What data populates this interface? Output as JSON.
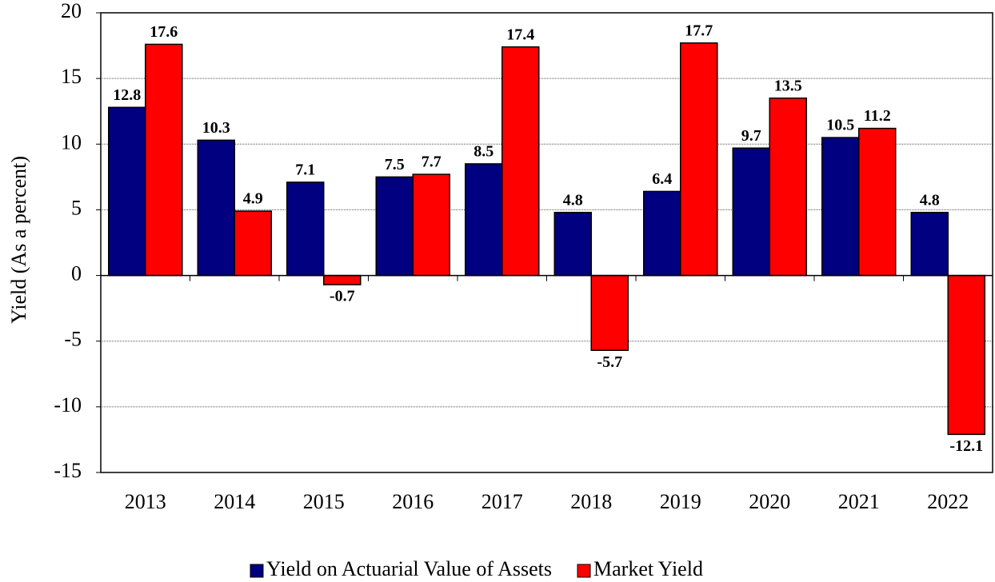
{
  "chart_data": {
    "type": "bar",
    "y_label": "Yield (As a percent)",
    "categories": [
      "2013",
      "2014",
      "2015",
      "2016",
      "2017",
      "2018",
      "2019",
      "2020",
      "2021",
      "2022"
    ],
    "series": [
      {
        "name": "Yield on Actuarial Value of Assets",
        "color": "#000080",
        "values": [
          12.8,
          10.3,
          7.1,
          7.5,
          8.5,
          4.8,
          6.4,
          9.7,
          10.5,
          4.8
        ]
      },
      {
        "name": "Market Yield",
        "color": "#ff0000",
        "values": [
          17.6,
          4.9,
          -0.7,
          7.7,
          17.4,
          -5.7,
          17.7,
          13.5,
          11.2,
          -12.1
        ]
      }
    ],
    "ylim": [
      -15,
      20
    ],
    "yticks": [
      -15,
      -10,
      -5,
      0,
      5,
      10,
      15,
      20
    ],
    "grid": true,
    "legend": "bottom"
  }
}
